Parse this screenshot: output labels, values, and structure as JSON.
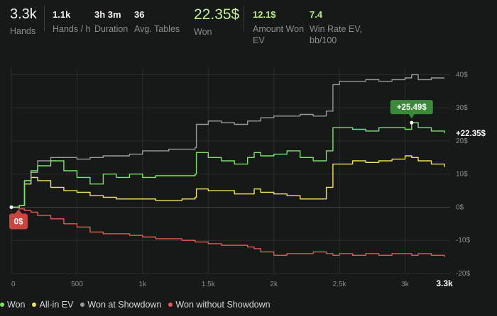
{
  "stats": {
    "hands": {
      "value": "3.3k",
      "label": "Hands"
    },
    "hands_per_hour": {
      "value": "1.1k",
      "label": "Hands / h"
    },
    "duration": {
      "value": "3h 3m",
      "label": "Duration"
    },
    "avg_tables": {
      "value": "36",
      "label": "Avg. Tables"
    },
    "won": {
      "value": "22.35$",
      "label": "Won"
    },
    "amount_won_ev": {
      "value": "12.1$",
      "label_line1": "Amount Won",
      "label_line2": "EV"
    },
    "win_rate_ev": {
      "value": "7.4",
      "label_line1": "Win Rate EV,",
      "label_line2": "bb/100"
    }
  },
  "colors": {
    "won": "#7ee26a",
    "allin_ev": "#f1e25c",
    "showdown": "#9a9a9a",
    "no_showdown": "#e25a55",
    "grid": "#2a2e2b",
    "zero_line": "#3d413e",
    "peak_badge": "#3a8a3a",
    "start_badge": "#c8463f"
  },
  "annotations": {
    "peak_label": "+25.49$",
    "final_label": "+22.35$",
    "start_label": "0$"
  },
  "chart_data": {
    "type": "line",
    "title": "",
    "xlabel": "",
    "ylabel": "",
    "xlim": [
      0,
      3300
    ],
    "ylim": [
      -20,
      42
    ],
    "x_ticks": [
      0,
      500,
      1000,
      1500,
      2000,
      2500,
      3000,
      3300
    ],
    "x_tick_labels": [
      "0",
      "500",
      "1k",
      "1.5k",
      "2k",
      "2.5k",
      "3k",
      "3.3k"
    ],
    "y_ticks": [
      40,
      30,
      20,
      10,
      0,
      -10,
      -20
    ],
    "y_tick_labels": [
      "40$",
      "30$",
      "20$",
      "10$",
      "0$",
      "-10$",
      "-20$"
    ],
    "grid": true,
    "legend_position": "bottom-left",
    "x": [
      0,
      60,
      100,
      150,
      200,
      300,
      400,
      500,
      600,
      700,
      800,
      900,
      1000,
      1100,
      1200,
      1300,
      1400,
      1410,
      1500,
      1600,
      1700,
      1800,
      1850,
      1900,
      2000,
      2100,
      2200,
      2300,
      2400,
      2450,
      2500,
      2600,
      2700,
      2800,
      2900,
      3000,
      3050,
      3100,
      3200,
      3300
    ],
    "series": [
      {
        "name": "Won",
        "values": [
          0,
          0.5,
          8,
          11,
          12.5,
          14,
          11,
          9,
          7,
          10,
          9,
          10,
          9,
          9.5,
          9.5,
          9.5,
          10,
          16.5,
          15,
          14,
          13,
          15,
          16.5,
          15.5,
          16,
          17,
          15,
          14,
          17,
          24,
          24,
          23.5,
          23,
          24,
          24,
          23.5,
          25.5,
          24,
          23,
          22.35
        ]
      },
      {
        "name": "All-in EV",
        "values": [
          0,
          0.5,
          7,
          9,
          8,
          6,
          5,
          4.5,
          3.5,
          3,
          2.5,
          2.5,
          2.5,
          2,
          2,
          2.5,
          3,
          5.5,
          5,
          5,
          4,
          4,
          5.5,
          4.5,
          4,
          3.5,
          2.5,
          2.5,
          6,
          13,
          13,
          14,
          13.5,
          14,
          14.5,
          15.5,
          15,
          14,
          13,
          12.1
        ]
      },
      {
        "name": "Won at Showdown",
        "values": [
          0,
          0.5,
          8,
          10.5,
          14,
          15,
          15,
          14.5,
          15,
          15.5,
          15.5,
          16,
          17,
          17,
          17.5,
          17.5,
          18,
          25,
          26,
          25.5,
          25,
          26,
          26,
          27,
          27.5,
          27.5,
          28,
          27.5,
          29,
          37,
          38,
          38,
          38.5,
          38,
          38.5,
          39,
          40,
          38.5,
          39,
          39
        ]
      },
      {
        "name": "Won without Showdown",
        "values": [
          0,
          -0.5,
          -1,
          -1.5,
          -2.5,
          -3.5,
          -5,
          -6,
          -7.5,
          -8,
          -8,
          -8.5,
          -9,
          -9.5,
          -9.5,
          -10,
          -10.5,
          -10.5,
          -11,
          -11.5,
          -11.5,
          -12,
          -12.5,
          -13.5,
          -14.5,
          -14,
          -14,
          -13.5,
          -14,
          -14.5,
          -14,
          -14.5,
          -14,
          -14.5,
          -14,
          -14,
          -14.5,
          -14,
          -14.5,
          -15
        ]
      }
    ]
  },
  "legend": [
    {
      "label": "Won",
      "color": "#7ee26a"
    },
    {
      "label": "All-in EV",
      "color": "#f1e25c"
    },
    {
      "label": "Won at Showdown",
      "color": "#9a9a9a"
    },
    {
      "label": "Won without Showdown",
      "color": "#e25a55"
    }
  ]
}
